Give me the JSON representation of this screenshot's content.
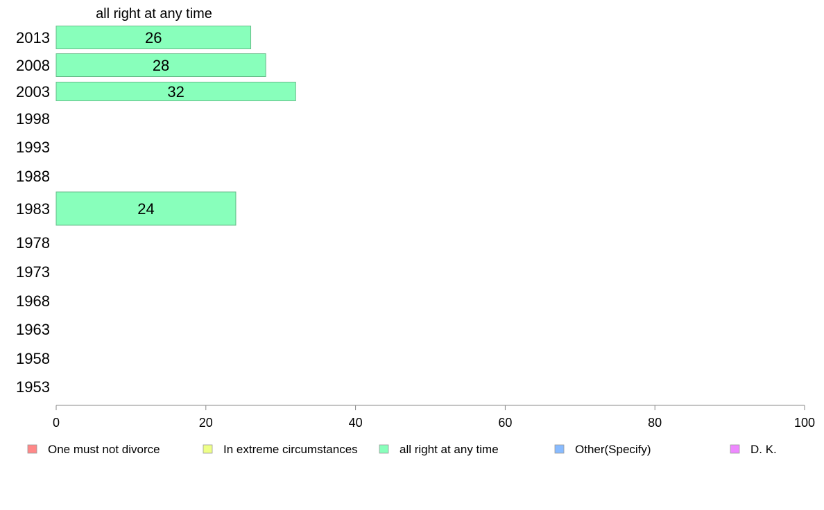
{
  "chart_data": {
    "type": "bar",
    "orientation": "horizontal",
    "title": "all right at any time",
    "categories": [
      "2013",
      "2008",
      "2003",
      "1998",
      "1993",
      "1988",
      "1983",
      "1978",
      "1973",
      "1968",
      "1963",
      "1958",
      "1953"
    ],
    "series": [
      {
        "name": "all right at any time",
        "color": "#88ffbb",
        "values": [
          26,
          28,
          32,
          null,
          null,
          null,
          24,
          null,
          null,
          null,
          null,
          null,
          null
        ],
        "labels": [
          "26",
          "28",
          "32",
          "",
          "",
          "",
          "24",
          "",
          "",
          "",
          "",
          "",
          ""
        ]
      }
    ],
    "xlim": [
      0,
      100
    ],
    "xticks": [
      "0",
      "20",
      "40",
      "60",
      "80",
      "100"
    ],
    "grid": false,
    "legend_position": "bottom",
    "legend": [
      {
        "label": "One must not divorce",
        "color": "#ff8888"
      },
      {
        "label": "In extreme circumstances",
        "color": "#eeff88"
      },
      {
        "label": "all right at any time",
        "color": "#88ffbb"
      },
      {
        "label": "Other(Specify)",
        "color": "#88bbff"
      },
      {
        "label": "D. K.",
        "color": "#ee88ff"
      }
    ]
  }
}
